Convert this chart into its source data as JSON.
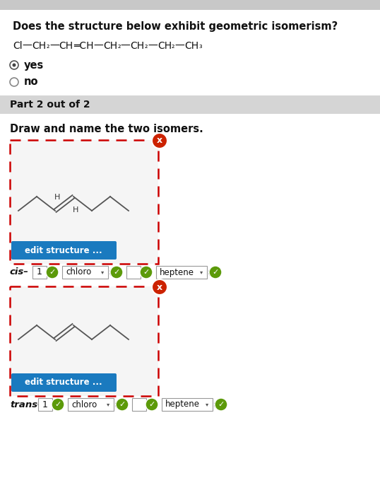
{
  "bg_color": "#f0f0f0",
  "white_bg": "#ffffff",
  "title": "Does the structure below exhibit geometric isomerism?",
  "option_yes": "yes",
  "option_no": "no",
  "part_label": "Part 2 out of 2",
  "draw_label": "Draw and name the two isomers.",
  "edit_btn_text": "edit structure ...",
  "edit_btn_color": "#1a7abf",
  "cis_label": "cis",
  "trans_label": "trans",
  "chloro_text": "chloro",
  "heptene_text": "heptene",
  "box_border_color": "#cc0000",
  "green_check_color": "#5c9a0a",
  "red_x_color": "#cc2200",
  "top_gray": "#c8c8c8",
  "part_gray": "#d5d5d5",
  "body_gray": "#e8e8e8"
}
